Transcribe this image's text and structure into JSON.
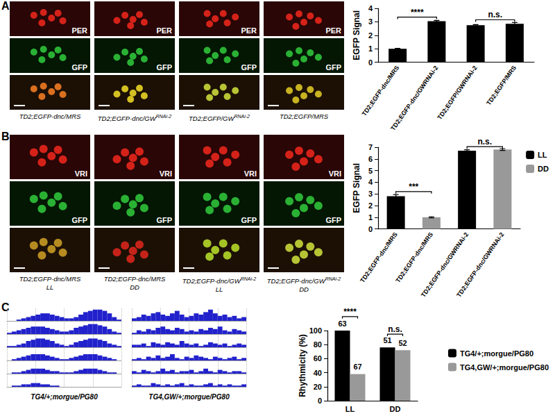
{
  "panel_labels": [
    "A",
    "B",
    "C"
  ],
  "image_panels": [
    {
      "channels": [
        "PER",
        "GFP"
      ],
      "columns": [
        {
          "base": "TD2;EGFP-dnc/MRS"
        },
        {
          "base": "TD2;EGFP-dnc/GW",
          "sup": "RNAi-2"
        },
        {
          "base": "TD2;EGFP/GW",
          "sup": "RNAi-2"
        },
        {
          "base": "TD2;EGFP/MRS"
        }
      ]
    },
    {
      "channels": [
        "VRI",
        "GFP"
      ],
      "columns": [
        {
          "base": "TD2;EGFP-dnc/MRS",
          "line2": "LL"
        },
        {
          "base": "TD2;EGFP-dnc/MRS",
          "line2": "DD"
        },
        {
          "base": "TD2;EGFP-dnc/GW",
          "sup": "RNAi-2",
          "line2": "LL"
        },
        {
          "base": "TD2;EGFP-dnc/GW",
          "sup": "RNAi-2",
          "line2": "DD"
        }
      ]
    }
  ],
  "chart_data": [
    {
      "type": "bar",
      "y_label": "EGFP Signal",
      "categories": [
        "TD2;EGFP-dnc/MRS",
        "TD2;EGFP-dnc/GWRNAi-2",
        "TD2;EGFP/GWRNAi-2",
        "TD2;EGFP/MRS"
      ],
      "values": [
        1.0,
        3.05,
        2.75,
        2.85
      ],
      "errors": [
        0.03,
        0.05,
        0.05,
        0.1
      ],
      "color": "#000000",
      "ylim": [
        0,
        4
      ],
      "yticks": [
        0,
        1,
        2,
        3,
        4
      ],
      "grid": false,
      "annotations": [
        {
          "text": "****",
          "from": 0,
          "to": 1,
          "y": 3.35
        },
        {
          "text": "n.s.",
          "from": 2,
          "to": 3,
          "y": 3.15
        }
      ]
    },
    {
      "type": "bar",
      "y_label": "EGFP Signal",
      "categories": [
        "TD2;EGFP-dnc/MRS",
        "TD2;EGFP-dnc/MRS",
        "TD2;EGFP-dnc/GWRNAi-2",
        "TD2;EGFP-dnc/GWRNAi-2"
      ],
      "series": [
        {
          "name": "LL",
          "color": "#000000",
          "values": [
            2.8,
            null,
            6.7,
            null
          ],
          "errors": [
            0.15,
            null,
            0.08,
            null
          ]
        },
        {
          "name": "DD",
          "color": "#999999",
          "values": [
            null,
            1.0,
            null,
            6.8
          ],
          "errors": [
            null,
            0.05,
            null,
            0.08
          ]
        }
      ],
      "ylim": [
        0,
        7
      ],
      "yticks": [
        0,
        1,
        2,
        3,
        4,
        5,
        6,
        7
      ],
      "grid": false,
      "legend": "right",
      "annotations": [
        {
          "text": "***",
          "from": 0,
          "to": 1,
          "y": 3.2
        },
        {
          "text": "n.s.",
          "from": 2,
          "to": 3,
          "y": 7.05
        }
      ]
    },
    {
      "type": "actogram",
      "tick_labels": false,
      "ylim": [
        0,
        10
      ],
      "color": "#2222cc",
      "panels": [
        {
          "label": "TG4/+;morgue/PG80",
          "rows": [
            [
              0,
              0,
              1,
              2,
              3,
              4,
              5,
              6,
              6,
              5,
              4,
              3,
              2,
              2,
              3,
              5,
              7,
              8,
              9,
              9,
              8,
              6,
              3,
              1
            ],
            [
              1,
              2,
              3,
              4,
              5,
              6,
              6,
              6,
              5,
              4,
              3,
              2,
              2,
              3,
              5,
              6,
              7,
              8,
              8,
              7,
              6,
              4,
              2,
              1
            ],
            [
              1,
              1,
              2,
              3,
              5,
              6,
              7,
              7,
              6,
              5,
              3,
              2,
              1,
              2,
              4,
              5,
              6,
              7,
              7,
              6,
              5,
              3,
              2,
              1
            ],
            [
              0,
              1,
              2,
              3,
              4,
              5,
              5,
              5,
              4,
              3,
              2,
              1,
              1,
              2,
              3,
              4,
              5,
              5,
              5,
              4,
              3,
              2,
              1,
              0
            ],
            [
              0,
              1,
              1,
              2,
              3,
              4,
              4,
              4,
              3,
              2,
              2,
              1,
              1,
              1,
              2,
              3,
              4,
              4,
              4,
              3,
              2,
              1,
              1,
              0
            ],
            [
              0,
              1,
              1,
              2,
              2,
              3,
              3,
              2,
              2,
              1,
              1,
              0,
              null,
              null,
              null,
              null,
              null,
              null,
              null,
              null,
              null,
              null,
              null,
              null
            ]
          ]
        },
        {
          "label": "TG4,GW/+;morgue/PG80",
          "rows": [
            [
              2,
              3,
              5,
              4,
              6,
              7,
              5,
              4,
              6,
              8,
              5,
              3,
              4,
              6,
              5,
              7,
              9,
              6,
              4,
              5,
              3,
              4,
              2,
              3
            ],
            [
              1,
              3,
              2,
              4,
              3,
              5,
              6,
              4,
              3,
              5,
              4,
              2,
              3,
              2,
              4,
              3,
              5,
              4,
              6,
              3,
              2,
              4,
              3,
              2
            ],
            [
              2,
              2,
              3,
              1,
              4,
              3,
              2,
              4,
              3,
              2,
              5,
              3,
              2,
              3,
              1,
              2,
              4,
              3,
              2,
              3,
              1,
              2,
              3,
              2
            ],
            [
              1,
              2,
              1,
              3,
              2,
              4,
              2,
              3,
              5,
              2,
              1,
              3,
              2,
              4,
              3,
              2,
              1,
              3,
              2,
              1,
              2,
              3,
              1,
              2
            ],
            [
              2,
              1,
              3,
              2,
              1,
              2,
              4,
              2,
              3,
              1,
              2,
              2,
              3,
              1,
              2,
              4,
              2,
              1,
              3,
              2,
              1,
              2,
              2,
              1
            ],
            [
              1,
              2,
              1,
              1,
              3,
              2,
              1,
              2,
              1,
              2,
              3,
              1,
              2,
              1,
              1,
              2,
              3,
              1,
              2,
              1,
              2,
              1,
              1,
              2
            ]
          ]
        }
      ]
    },
    {
      "type": "bar",
      "y_label": "Rhythmicity (%)",
      "categories": [
        "LL",
        "DD"
      ],
      "series": [
        {
          "name": "TG4/+;morgue/PG80",
          "color": "#000000",
          "values": [
            100,
            76
          ],
          "n": [
            63,
            51
          ]
        },
        {
          "name": "TG4,GW/+;morgue/PG80",
          "color": "#999999",
          "values": [
            38,
            72
          ],
          "n": [
            67,
            52
          ]
        }
      ],
      "ylim": [
        0,
        100
      ],
      "yticks": [
        0,
        20,
        40,
        60,
        80,
        100
      ],
      "grid": false,
      "legend": "right",
      "annotations": [
        {
          "text": "****",
          "category": 0,
          "y": 120
        },
        {
          "text": "n.s.",
          "category": 1,
          "y": 95
        }
      ]
    }
  ]
}
